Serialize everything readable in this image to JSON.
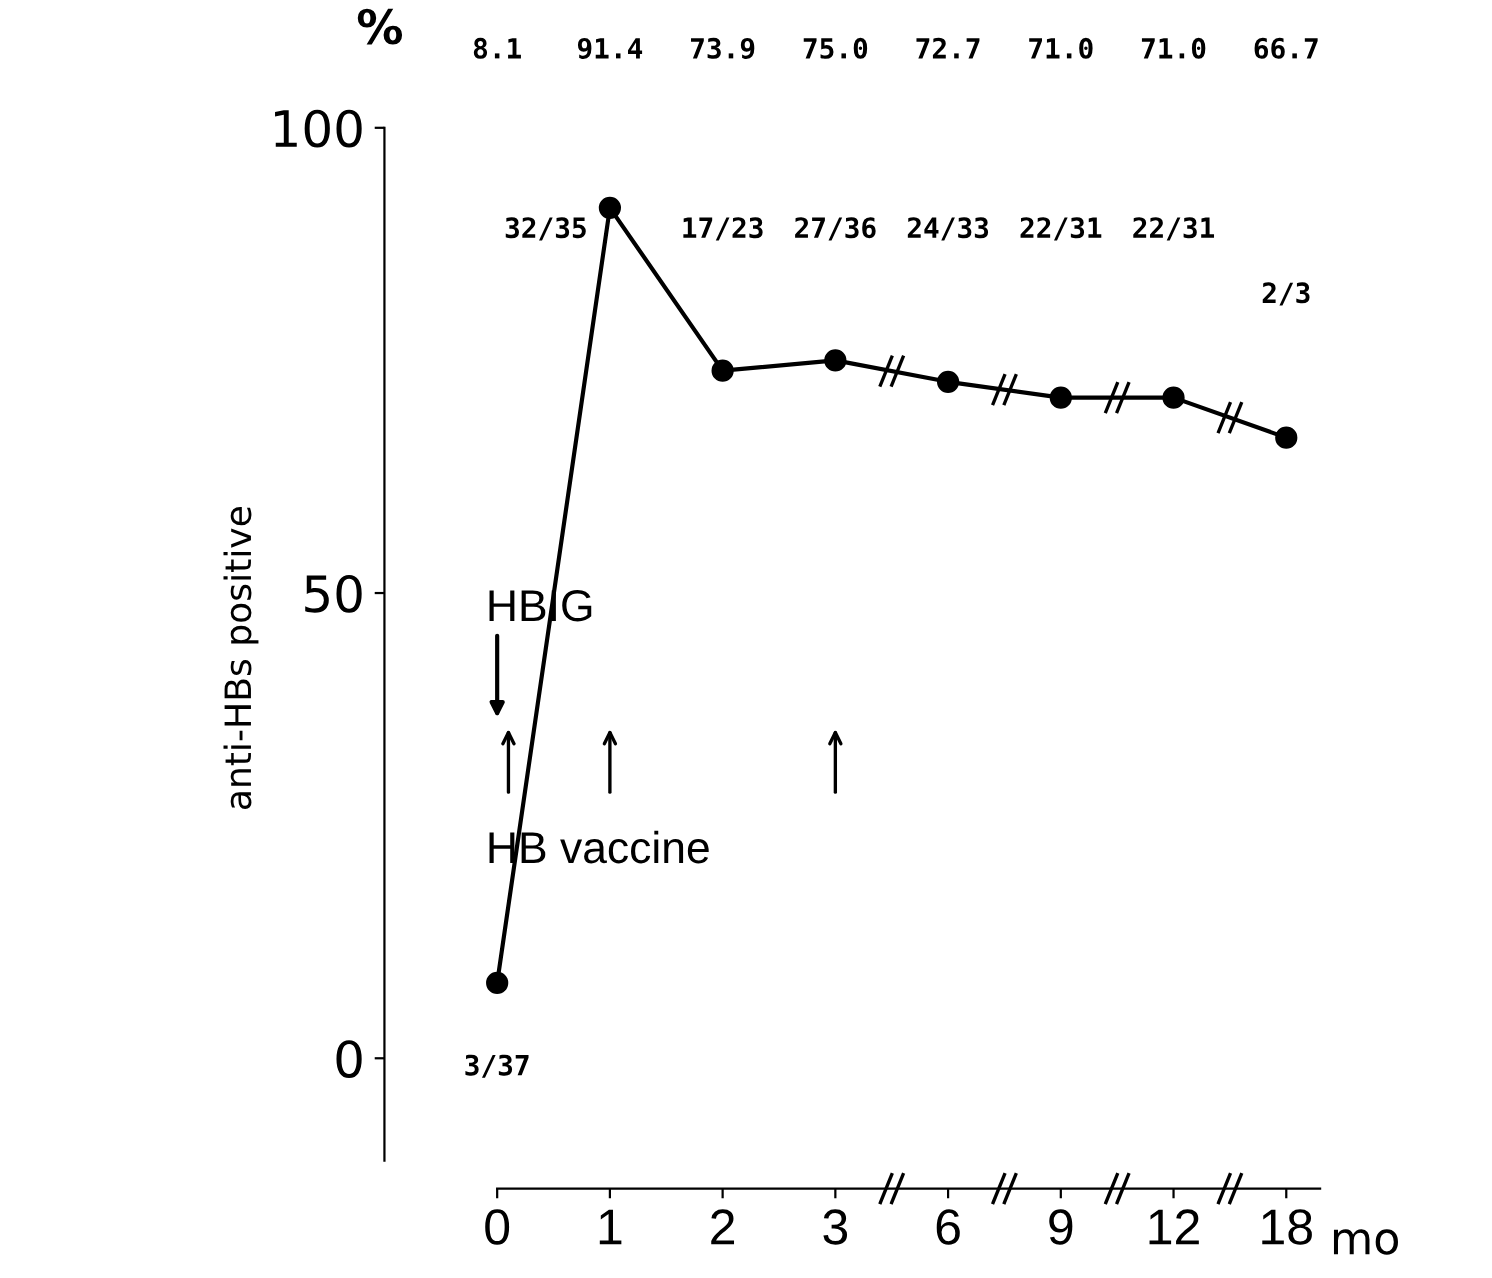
{
  "chart_data": {
    "type": "line",
    "categories": [
      "0",
      "1",
      "2",
      "3",
      "6",
      "9",
      "12",
      "18"
    ],
    "values": [
      8.1,
      91.4,
      73.9,
      75.0,
      72.7,
      71.0,
      71.0,
      66.7
    ],
    "value_labels": [
      "8.1",
      "91.4",
      "73.9",
      "75.0",
      "72.7",
      "71.0",
      "71.0",
      "66.7"
    ],
    "color": "#000000",
    "xlabel": "mo",
    "ylabel": "anti-HBs positive",
    "ylim": [
      -14,
      100
    ],
    "yticks": [
      0,
      50,
      100
    ],
    "marker": "circle",
    "line_style": "solid",
    "grid": false,
    "annotations": [
      "%",
      "HBIG",
      "HB vaccine",
      "3/37",
      "32/35",
      "17/23",
      "27/36",
      "24/33",
      "22/31",
      "22/31",
      "2/3"
    ]
  }
}
